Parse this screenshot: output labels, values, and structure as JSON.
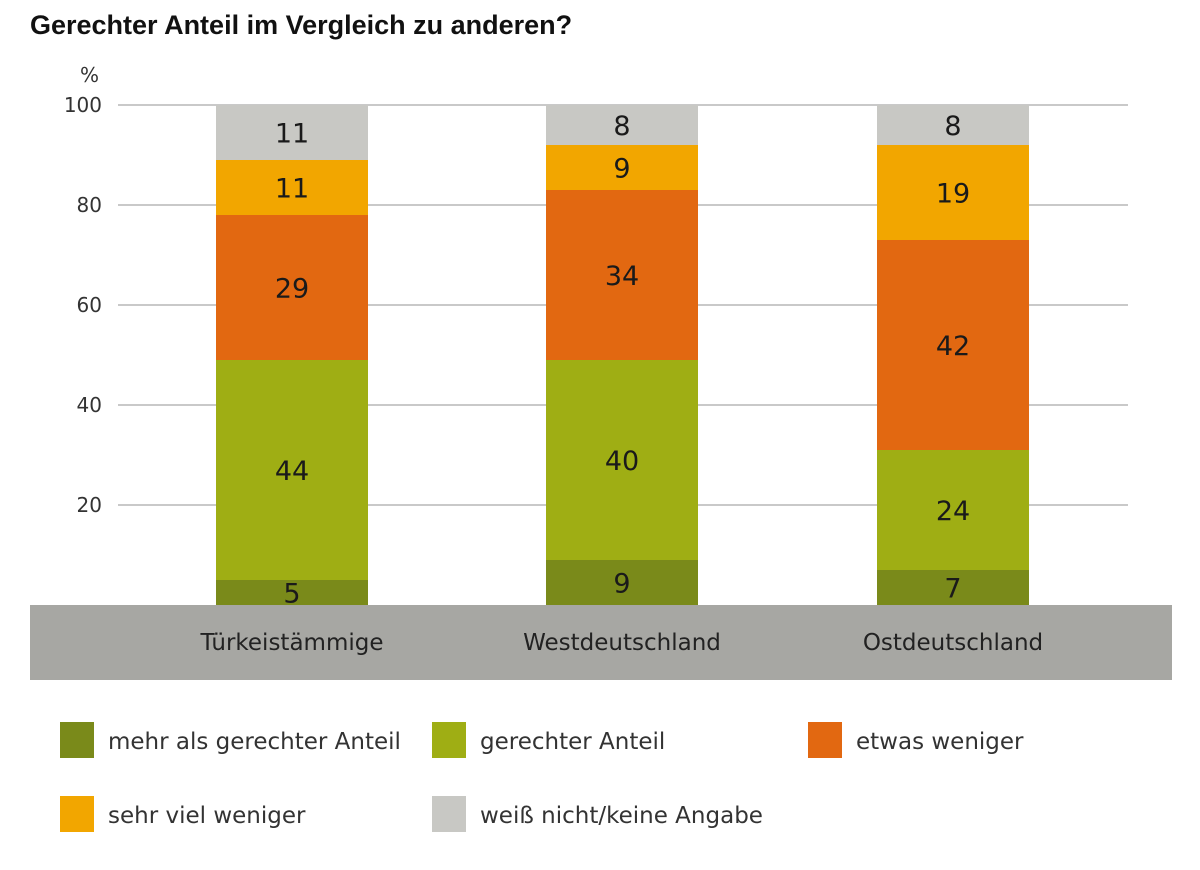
{
  "chart_data": {
    "type": "bar",
    "stacked": true,
    "title": "Gerechter Anteil im Vergleich zu anderen?",
    "ylabel": "%",
    "ylim": [
      0,
      100
    ],
    "yticks": [
      20,
      40,
      60,
      80,
      100
    ],
    "grid": true,
    "legend_position": "bottom",
    "categories": [
      "Türkeistämmige",
      "Westdeutschland",
      "Ostdeutschland"
    ],
    "series": [
      {
        "name": "mehr als gerechter Anteil",
        "color": "#7a8a1a",
        "values": [
          5,
          9,
          7
        ]
      },
      {
        "name": "gerechter Anteil",
        "color": "#9fae14",
        "values": [
          44,
          40,
          24
        ]
      },
      {
        "name": "etwas weniger",
        "color": "#e26811",
        "values": [
          29,
          34,
          42
        ]
      },
      {
        "name": "sehr viel weniger",
        "color": "#f2a600",
        "values": [
          11,
          9,
          19
        ]
      },
      {
        "name": "weiß nicht/keine Angabe",
        "color": "#c8c8c4",
        "values": [
          11,
          8,
          8
        ]
      }
    ]
  }
}
